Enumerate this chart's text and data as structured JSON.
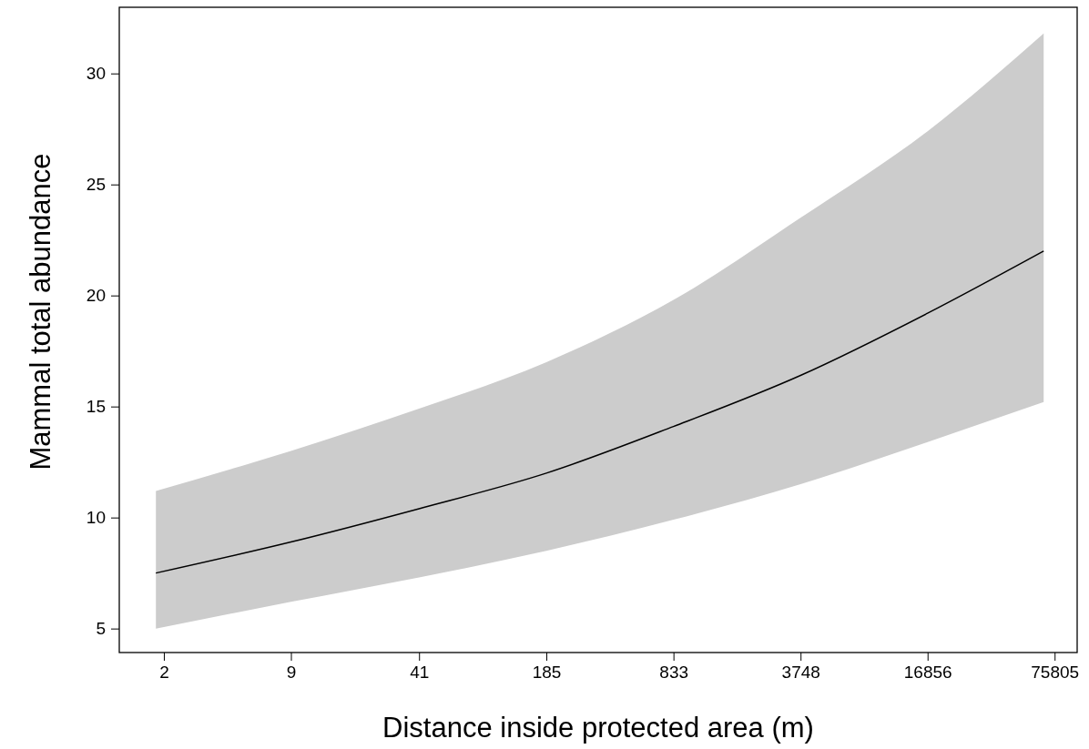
{
  "chart_data": {
    "type": "line",
    "xlabel": "Distance inside protected area (m)",
    "ylabel": "Mammal total abundance",
    "log": "x",
    "xlim": [
      1.18,
      99000
    ],
    "xticks": [
      2,
      9,
      41,
      185,
      833,
      3748,
      16856,
      75805
    ],
    "ylim": [
      3.92,
      32.98
    ],
    "yticks": [
      5,
      10,
      15,
      20,
      25,
      30
    ],
    "grid": false,
    "series": [
      {
        "color": "#000000",
        "x": [
          1.82,
          9,
          41,
          185,
          833,
          3748,
          16856,
          66600
        ],
        "values": [
          7.5,
          8.9,
          10.4,
          12.0,
          14.1,
          16.4,
          19.2,
          22.0
        ],
        "lower": [
          5.0,
          6.2,
          7.3,
          8.5,
          9.9,
          11.5,
          13.4,
          15.2
        ],
        "upper": [
          11.2,
          13.0,
          14.9,
          17.0,
          19.8,
          23.5,
          27.4,
          31.8
        ]
      }
    ]
  }
}
